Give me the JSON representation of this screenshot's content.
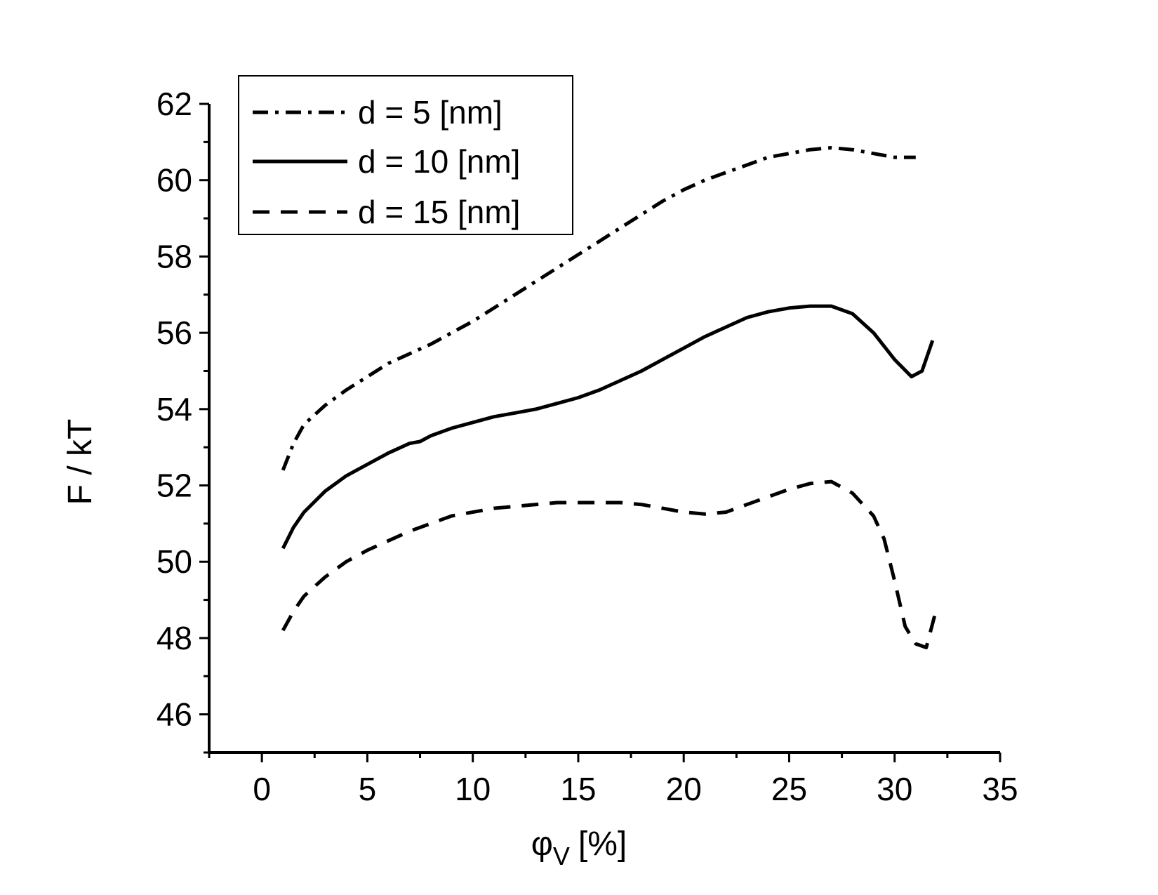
{
  "chart_data": {
    "type": "line",
    "xlabel": "φ",
    "xlabel_sub": "V",
    "xlabel_unit": "[%]",
    "ylabel": "F / kT",
    "xlim": [
      -2.5,
      35
    ],
    "ylim": [
      45,
      62
    ],
    "xticks": [
      0,
      5,
      10,
      15,
      20,
      25,
      30,
      35
    ],
    "yticks": [
      46,
      48,
      50,
      52,
      54,
      56,
      58,
      60,
      62
    ],
    "grid": false,
    "legend_position": "top-left",
    "series": [
      {
        "name": "d = 5 [nm]",
        "style": "dashdot",
        "points": [
          [
            1,
            52.4
          ],
          [
            1.5,
            53.1
          ],
          [
            2,
            53.6
          ],
          [
            3,
            54.1
          ],
          [
            4,
            54.5
          ],
          [
            5,
            54.85
          ],
          [
            6,
            55.2
          ],
          [
            7,
            55.45
          ],
          [
            8,
            55.7
          ],
          [
            9,
            56.0
          ],
          [
            10,
            56.3
          ],
          [
            11,
            56.65
          ],
          [
            12,
            57.0
          ],
          [
            13,
            57.35
          ],
          [
            14,
            57.7
          ],
          [
            15,
            58.05
          ],
          [
            16,
            58.4
          ],
          [
            17,
            58.75
          ],
          [
            18,
            59.1
          ],
          [
            19,
            59.45
          ],
          [
            20,
            59.75
          ],
          [
            21,
            60.0
          ],
          [
            22,
            60.2
          ],
          [
            23,
            60.4
          ],
          [
            24,
            60.6
          ],
          [
            25,
            60.7
          ],
          [
            26,
            60.8
          ],
          [
            27,
            60.85
          ],
          [
            28,
            60.8
          ],
          [
            29,
            60.7
          ],
          [
            30,
            60.6
          ],
          [
            31,
            60.6
          ]
        ],
        "color": "#000000"
      },
      {
        "name": "d = 10 [nm]",
        "style": "solid",
        "points": [
          [
            1,
            50.35
          ],
          [
            1.5,
            50.9
          ],
          [
            2,
            51.3
          ],
          [
            3,
            51.85
          ],
          [
            4,
            52.25
          ],
          [
            5,
            52.55
          ],
          [
            6,
            52.85
          ],
          [
            7,
            53.1
          ],
          [
            7.5,
            53.15
          ],
          [
            8,
            53.3
          ],
          [
            9,
            53.5
          ],
          [
            10,
            53.65
          ],
          [
            11,
            53.8
          ],
          [
            12,
            53.9
          ],
          [
            13,
            54.0
          ],
          [
            14,
            54.15
          ],
          [
            15,
            54.3
          ],
          [
            16,
            54.5
          ],
          [
            17,
            54.75
          ],
          [
            18,
            55.0
          ],
          [
            19,
            55.3
          ],
          [
            20,
            55.6
          ],
          [
            21,
            55.9
          ],
          [
            22,
            56.15
          ],
          [
            23,
            56.4
          ],
          [
            24,
            56.55
          ],
          [
            25,
            56.65
          ],
          [
            26,
            56.7
          ],
          [
            27,
            56.7
          ],
          [
            28,
            56.5
          ],
          [
            29,
            56.0
          ],
          [
            30,
            55.3
          ],
          [
            30.8,
            54.85
          ],
          [
            31.3,
            55.0
          ],
          [
            31.8,
            55.8
          ]
        ],
        "color": "#000000"
      },
      {
        "name": "d = 15 [nm]",
        "style": "dashed",
        "points": [
          [
            1,
            48.2
          ],
          [
            1.5,
            48.7
          ],
          [
            2,
            49.1
          ],
          [
            3,
            49.6
          ],
          [
            4,
            50.0
          ],
          [
            5,
            50.3
          ],
          [
            6,
            50.55
          ],
          [
            7,
            50.8
          ],
          [
            8,
            51.0
          ],
          [
            9,
            51.2
          ],
          [
            10,
            51.3
          ],
          [
            11,
            51.4
          ],
          [
            12,
            51.45
          ],
          [
            13,
            51.5
          ],
          [
            14,
            51.55
          ],
          [
            15,
            51.55
          ],
          [
            16,
            51.55
          ],
          [
            17,
            51.55
          ],
          [
            18,
            51.5
          ],
          [
            19,
            51.4
          ],
          [
            20,
            51.3
          ],
          [
            21,
            51.25
          ],
          [
            22,
            51.3
          ],
          [
            23,
            51.5
          ],
          [
            24,
            51.7
          ],
          [
            25,
            51.9
          ],
          [
            26,
            52.05
          ],
          [
            27,
            52.1
          ],
          [
            28,
            51.8
          ],
          [
            29,
            51.2
          ],
          [
            29.5,
            50.6
          ],
          [
            30,
            49.5
          ],
          [
            30.5,
            48.3
          ],
          [
            31,
            47.85
          ],
          [
            31.5,
            47.75
          ],
          [
            32,
            48.8
          ]
        ],
        "color": "#000000"
      }
    ]
  }
}
